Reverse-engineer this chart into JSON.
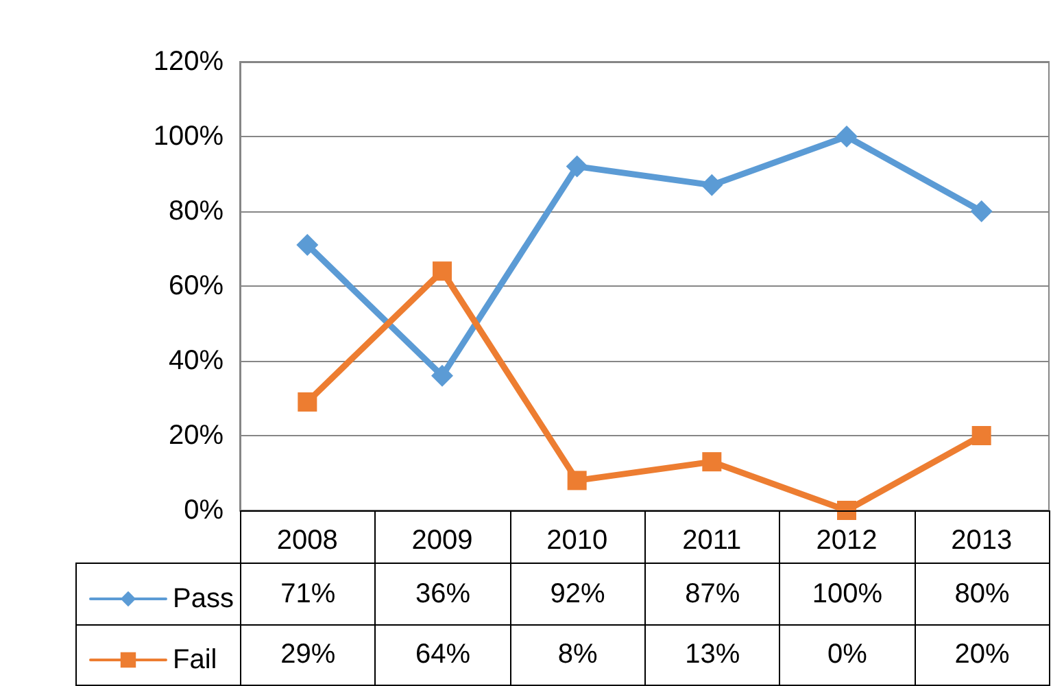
{
  "chart_data": {
    "type": "line",
    "categories": [
      "2008",
      "2009",
      "2010",
      "2011",
      "2012",
      "2013"
    ],
    "series": [
      {
        "name": "Pass",
        "color": "#5b9bd5",
        "marker": "diamond",
        "values": [
          71,
          36,
          92,
          87,
          100,
          80
        ],
        "value_labels": [
          "71%",
          "36%",
          "92%",
          "87%",
          "100%",
          "80%"
        ]
      },
      {
        "name": "Fail",
        "color": "#ed7d31",
        "marker": "square",
        "values": [
          29,
          64,
          8,
          13,
          0,
          20
        ],
        "value_labels": [
          "29%",
          "64%",
          "8%",
          "13%",
          "0%",
          "20%"
        ]
      }
    ],
    "ylim": [
      0,
      120
    ],
    "yticks": [
      {
        "value": 0,
        "label": "0%"
      },
      {
        "value": 20,
        "label": "20%"
      },
      {
        "value": 40,
        "label": "40%"
      },
      {
        "value": 60,
        "label": "60%"
      },
      {
        "value": 80,
        "label": "80%"
      },
      {
        "value": 100,
        "label": "100%"
      },
      {
        "value": 120,
        "label": "120%"
      }
    ],
    "grid": "y",
    "legend": "bottom"
  }
}
